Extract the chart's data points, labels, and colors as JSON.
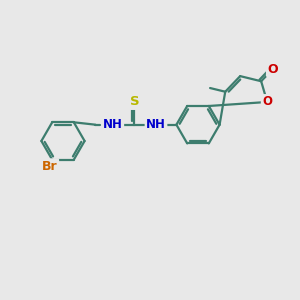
{
  "background_color": "#e8e8e8",
  "bond_color": "#3d7d6e",
  "bond_width": 1.6,
  "atom_colors": {
    "S": "#b8b800",
    "N": "#0000cc",
    "O": "#cc0000",
    "Br": "#cc6600",
    "C": "#3d7d6e"
  },
  "font_size": 8.5,
  "figsize": [
    3.0,
    3.0
  ],
  "dpi": 100,
  "xlim": [
    0,
    10
  ],
  "ylim": [
    0,
    10
  ]
}
